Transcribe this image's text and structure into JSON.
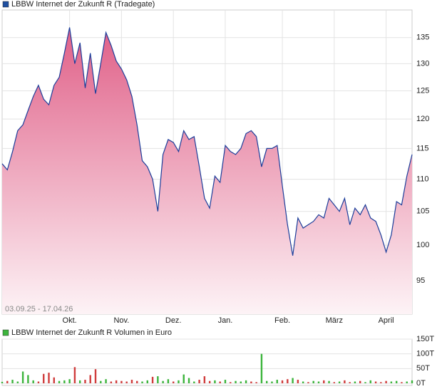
{
  "chart_data": [
    {
      "type": "area",
      "title": "LBBW Internet der Zukunft R (Tradegate)",
      "date_range": "03.09.25 - 17.04.26",
      "color": "#1c3d9a",
      "legend_color": "#1f4fa0",
      "fill_top": "#e06088",
      "fill_bottom": "#fdf3f6",
      "log_scale": true,
      "grid": true,
      "ylim": [
        90.5,
        140.5
      ],
      "yticks": [
        95,
        100,
        105,
        110,
        115,
        120,
        125,
        130,
        135
      ],
      "categories": [
        null,
        null,
        null,
        null,
        null,
        null,
        null,
        null,
        null,
        null,
        null,
        null,
        null,
        "Okt.",
        null,
        null,
        null,
        null,
        null,
        null,
        null,
        null,
        null,
        "Nov.",
        null,
        null,
        null,
        null,
        null,
        null,
        null,
        null,
        null,
        "Dez.",
        null,
        null,
        null,
        null,
        null,
        null,
        null,
        null,
        null,
        "Jan.",
        null,
        null,
        null,
        null,
        null,
        null,
        null,
        null,
        null,
        null,
        "Feb.",
        null,
        null,
        null,
        null,
        null,
        null,
        null,
        null,
        null,
        "März",
        null,
        null,
        null,
        null,
        null,
        null,
        null,
        null,
        null,
        "April",
        null,
        null,
        null,
        null,
        null
      ],
      "values": [
        112.5,
        111.5,
        114.5,
        118,
        119,
        121.5,
        124,
        126,
        123.5,
        122.5,
        126,
        127.5,
        132,
        137,
        130,
        134,
        125.5,
        132,
        124.5,
        130,
        136,
        133.5,
        130.5,
        129,
        127,
        124,
        119,
        113,
        112,
        110,
        105,
        114,
        116.5,
        116,
        114.5,
        118,
        116.5,
        117,
        112,
        107,
        105.5,
        110.5,
        109.5,
        115.5,
        114.5,
        114,
        115,
        117.5,
        118,
        117,
        112,
        115,
        115,
        115.5,
        109,
        103,
        98.5,
        104,
        102.5,
        103,
        103.5,
        104.5,
        104,
        107,
        106,
        105,
        107,
        103,
        105.5,
        104.5,
        106,
        104,
        103.5,
        101.5,
        99,
        101.5,
        106.5,
        106,
        110.5,
        114
      ]
    },
    {
      "type": "bar",
      "title": "LBBW Internet der Zukunft R Volumen in Euro",
      "legend_color": "#3cb43c",
      "grid": true,
      "ylim": [
        0,
        150000
      ],
      "yticks": [
        {
          "value": 0,
          "label": "0T"
        },
        {
          "value": 50000,
          "label": "50T"
        },
        {
          "value": 100000,
          "label": "100T"
        },
        {
          "value": 150000,
          "label": "150T"
        }
      ],
      "values": [
        5000,
        8000,
        12000,
        6000,
        40000,
        28000,
        10000,
        6000,
        32000,
        36000,
        20000,
        8000,
        10000,
        14000,
        55000,
        10000,
        12000,
        28000,
        48000,
        8000,
        14000,
        6000,
        10000,
        8000,
        6000,
        12000,
        8000,
        6000,
        10000,
        22000,
        24000,
        8000,
        14000,
        6000,
        10000,
        30000,
        18000,
        6000,
        12000,
        24000,
        8000,
        10000,
        6000,
        12000,
        4000,
        8000,
        6000,
        10000,
        6000,
        4000,
        100000,
        8000,
        6000,
        12000,
        10000,
        14000,
        18000,
        12000,
        6000,
        4000,
        8000,
        6000,
        10000,
        8000,
        4000,
        6000,
        10000,
        4000,
        6000,
        8000,
        4000,
        10000,
        6000,
        4000,
        8000,
        6000,
        8000,
        4000,
        6000,
        10000
      ],
      "colors": [
        "#3cb43c",
        "#d03c3c",
        "#3cb43c",
        "#3cb43c",
        "#3cb43c",
        "#3cb43c",
        "#3cb43c",
        "#d03c3c",
        "#d03c3c",
        "#d03c3c",
        "#d03c3c",
        "#3cb43c",
        "#3cb43c",
        "#3cb43c",
        "#d03c3c",
        "#3cb43c",
        "#d03c3c",
        "#d03c3c",
        "#d03c3c",
        "#3cb43c",
        "#3cb43c",
        "#d03c3c",
        "#d03c3c",
        "#d03c3c",
        "#d03c3c",
        "#d03c3c",
        "#d03c3c",
        "#3cb43c",
        "#3cb43c",
        "#d03c3c",
        "#3cb43c",
        "#3cb43c",
        "#3cb43c",
        "#d03c3c",
        "#3cb43c",
        "#3cb43c",
        "#3cb43c",
        "#3cb43c",
        "#d03c3c",
        "#d03c3c",
        "#d03c3c",
        "#3cb43c",
        "#d03c3c",
        "#3cb43c",
        "#d03c3c",
        "#3cb43c",
        "#3cb43c",
        "#3cb43c",
        "#d03c3c",
        "#d03c3c",
        "#3cb43c",
        "#3cb43c",
        "#3cb43c",
        "#3cb43c",
        "#d03c3c",
        "#d03c3c",
        "#3cb43c",
        "#d03c3c",
        "#3cb43c",
        "#d03c3c",
        "#3cb43c",
        "#3cb43c",
        "#d03c3c",
        "#3cb43c",
        "#d03c3c",
        "#3cb43c",
        "#d03c3c",
        "#d03c3c",
        "#3cb43c",
        "#d03c3c",
        "#3cb43c",
        "#3cb43c",
        "#d03c3c",
        "#d03c3c",
        "#d03c3c",
        "#3cb43c",
        "#3cb43c",
        "#d03c3c",
        "#3cb43c",
        "#3cb43c"
      ]
    }
  ]
}
